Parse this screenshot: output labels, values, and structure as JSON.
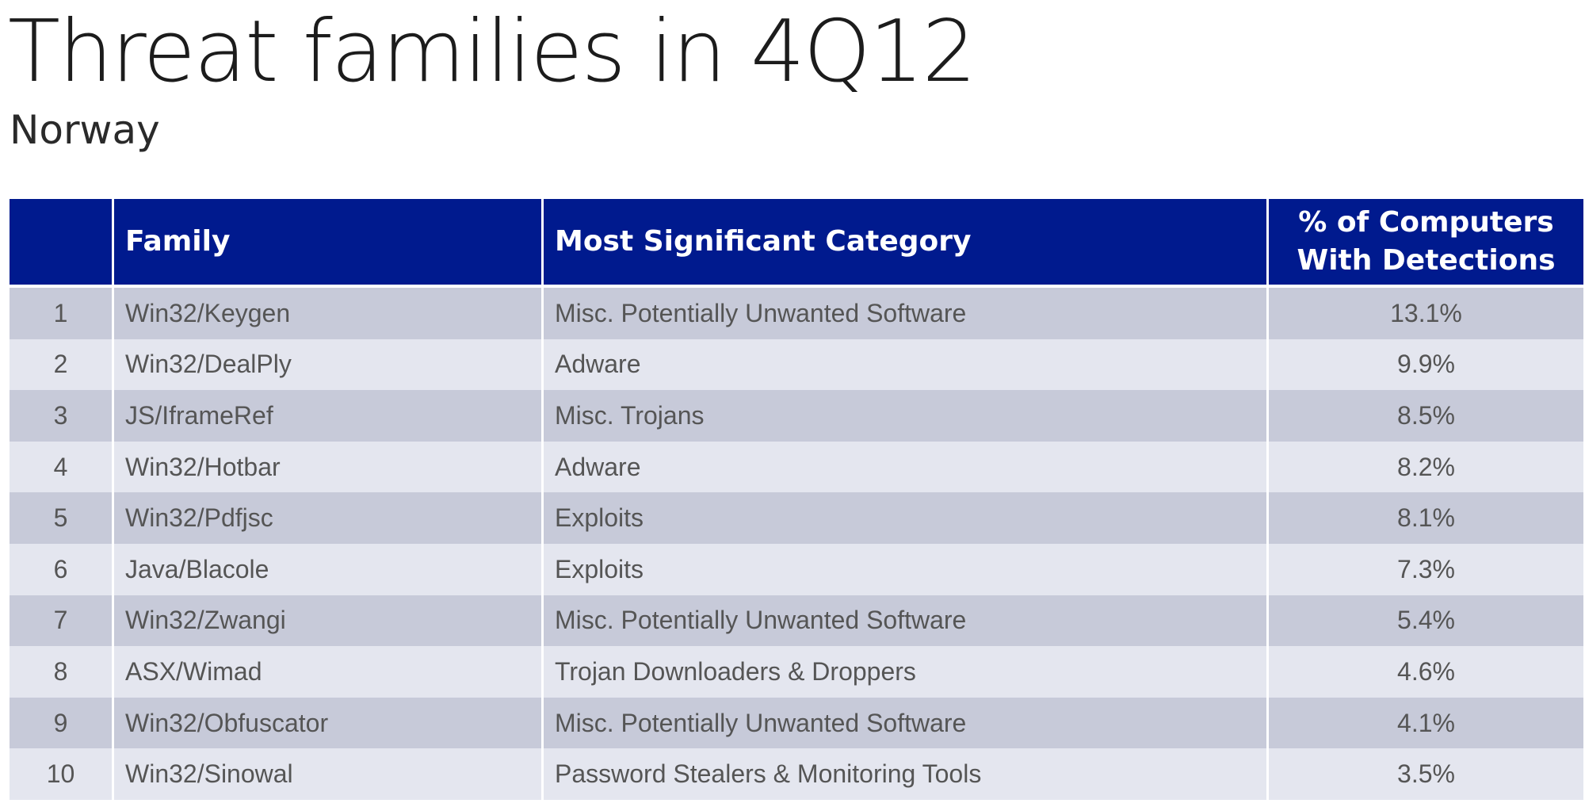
{
  "title": "Threat families in 4Q12",
  "subtitle": "Norway",
  "columns": [
    "",
    "Family",
    "Most Significant Category",
    "% of Computers With Detections"
  ],
  "header_color": "#001a8e",
  "row_colors": [
    "#c7cad9",
    "#e4e6ef"
  ],
  "rows": [
    {
      "rank": "1",
      "family": "Win32/Keygen",
      "category": "Misc. Potentially Unwanted Software",
      "percent": "13.1%"
    },
    {
      "rank": "2",
      "family": "Win32/DealPly",
      "category": "Adware",
      "percent": "9.9%"
    },
    {
      "rank": "3",
      "family": "JS/IframeRef",
      "category": "Misc. Trojans",
      "percent": "8.5%"
    },
    {
      "rank": "4",
      "family": "Win32/Hotbar",
      "category": "Adware",
      "percent": "8.2%"
    },
    {
      "rank": "5",
      "family": "Win32/Pdfjsc",
      "category": "Exploits",
      "percent": "8.1%"
    },
    {
      "rank": "6",
      "family": "Java/Blacole",
      "category": "Exploits",
      "percent": "7.3%"
    },
    {
      "rank": "7",
      "family": "Win32/Zwangi",
      "category": "Misc. Potentially Unwanted Software",
      "percent": "5.4%"
    },
    {
      "rank": "8",
      "family": "ASX/Wimad",
      "category": "Trojan Downloaders & Droppers",
      "percent": "4.6%"
    },
    {
      "rank": "9",
      "family": "Win32/Obfuscator",
      "category": "Misc. Potentially Unwanted Software",
      "percent": "4.1%"
    },
    {
      "rank": "10",
      "family": "Win32/Sinowal",
      "category": "Password Stealers & Monitoring Tools",
      "percent": "3.5%"
    }
  ],
  "chart_data": {
    "type": "table",
    "title": "Threat families in 4Q12",
    "subtitle": "Norway",
    "columns": [
      "",
      "Family",
      "Most Significant Category",
      "% of Computers With Detections"
    ],
    "categories": [
      "Win32/Keygen",
      "Win32/DealPly",
      "JS/IframeRef",
      "Win32/Hotbar",
      "Win32/Pdfjsc",
      "Java/Blacole",
      "Win32/Zwangi",
      "ASX/Wimad",
      "Win32/Obfuscator",
      "Win32/Sinowal"
    ],
    "series": [
      {
        "name": "% of Computers With Detections",
        "values": [
          13.1,
          9.9,
          8.5,
          8.2,
          8.1,
          7.3,
          5.4,
          4.6,
          4.1,
          3.5
        ]
      }
    ]
  }
}
